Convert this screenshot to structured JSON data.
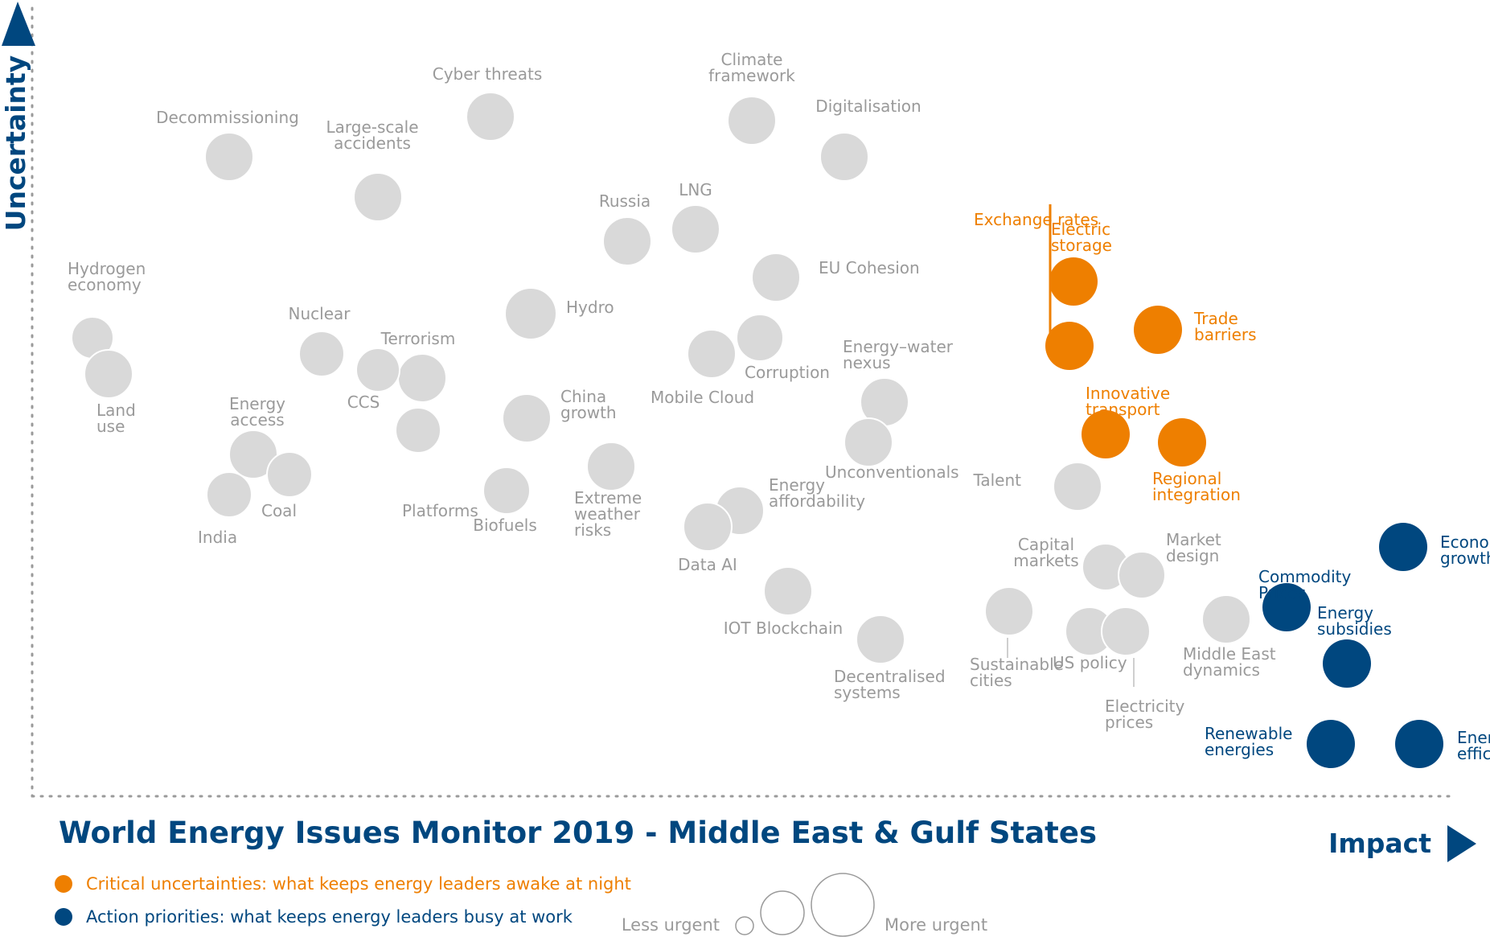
{
  "chart_data": {
    "type": "scatter",
    "title": "World Energy Issues Monitor 2019 - Middle East & Gulf States",
    "xlabel": "Impact",
    "ylabel": "Uncertainty",
    "grid": false,
    "colors": {
      "grey": "#d9d9d9",
      "grey_text": "#9a9a9a",
      "orange": "#ee7f00",
      "blue": "#00477f"
    },
    "legend": [
      {
        "color": "orange",
        "text": "Critical uncertainties: what keeps energy leaders awake at night"
      },
      {
        "color": "blue",
        "text": "Action priorities: what keeps energy leaders busy at work"
      }
    ],
    "size_legend": {
      "less": "Less urgent",
      "more": "More urgent"
    },
    "points": [
      {
        "label": "Cyber threats",
        "impact": 5.7,
        "uncertainty": 8.55,
        "size": 3.0,
        "group": "grey"
      },
      {
        "label": "Decommissioning",
        "impact": 2.45,
        "uncertainty": 8.05,
        "size": 3.0,
        "group": "grey"
      },
      {
        "label": "Large-scale\naccidents",
        "impact": 4.3,
        "uncertainty": 7.55,
        "size": 3.0,
        "group": "grey"
      },
      {
        "label": "Climate\nframework",
        "impact": 8.95,
        "uncertainty": 8.5,
        "size": 3.0,
        "group": "grey"
      },
      {
        "label": "Digitalisation",
        "impact": 10.1,
        "uncertainty": 8.05,
        "size": 3.0,
        "group": "grey"
      },
      {
        "label": "Russia",
        "impact": 7.4,
        "uncertainty": 7.0,
        "size": 3.0,
        "group": "grey"
      },
      {
        "label": "LNG",
        "impact": 8.25,
        "uncertainty": 7.15,
        "size": 3.0,
        "group": "grey"
      },
      {
        "label": "Hydrogen\neconomy",
        "impact": 0.75,
        "uncertainty": 5.8,
        "size": 2.6,
        "group": "grey"
      },
      {
        "label": "Land\nuse",
        "impact": 0.95,
        "uncertainty": 5.35,
        "size": 3.0,
        "group": "grey"
      },
      {
        "label": "Nuclear",
        "impact": 3.6,
        "uncertainty": 5.6,
        "size": 2.8,
        "group": "grey"
      },
      {
        "label": "Terrorism",
        "impact": 4.85,
        "uncertainty": 5.3,
        "size": 3.0,
        "group": "grey"
      },
      {
        "label": "CCS",
        "impact": 4.3,
        "uncertainty": 5.4,
        "size": 2.7,
        "group": "grey"
      },
      {
        "label": "Platforms",
        "impact": 4.8,
        "uncertainty": 4.65,
        "size": 2.8,
        "group": "grey"
      },
      {
        "label": "Hydro",
        "impact": 6.2,
        "uncertainty": 6.1,
        "size": 3.2,
        "group": "grey"
      },
      {
        "label": "EU Cohesion",
        "impact": 9.25,
        "uncertainty": 6.55,
        "size": 3.0,
        "group": "grey"
      },
      {
        "label": "Mobile Cloud",
        "impact": 8.45,
        "uncertainty": 5.6,
        "size": 3.0,
        "group": "grey"
      },
      {
        "label": "Corruption",
        "impact": 9.05,
        "uncertainty": 5.8,
        "size": 2.9,
        "group": "grey"
      },
      {
        "label": "Energy–water\nnexus",
        "impact": 10.6,
        "uncertainty": 5.0,
        "size": 3.0,
        "group": "grey"
      },
      {
        "label": "Unconventionals",
        "impact": 10.4,
        "uncertainty": 4.5,
        "size": 3.0,
        "group": "grey"
      },
      {
        "label": "Energy\naccess",
        "impact": 2.75,
        "uncertainty": 4.35,
        "size": 3.0,
        "group": "grey"
      },
      {
        "label": "Coal",
        "impact": 3.2,
        "uncertainty": 4.1,
        "size": 2.8,
        "group": "grey"
      },
      {
        "label": "India",
        "impact": 2.45,
        "uncertainty": 3.85,
        "size": 2.8,
        "group": "grey"
      },
      {
        "label": "China\ngrowth",
        "impact": 6.15,
        "uncertainty": 4.8,
        "size": 3.0,
        "group": "grey"
      },
      {
        "label": "Biofuels",
        "impact": 5.9,
        "uncertainty": 3.9,
        "size": 2.9,
        "group": "grey"
      },
      {
        "label": "Extreme\nweather\nrisks",
        "impact": 7.2,
        "uncertainty": 4.2,
        "size": 3.0,
        "group": "grey"
      },
      {
        "label": "Energy\naffordability",
        "impact": 8.8,
        "uncertainty": 3.65,
        "size": 3.0,
        "group": "grey"
      },
      {
        "label": "Data AI",
        "impact": 8.4,
        "uncertainty": 3.45,
        "size": 3.0,
        "group": "grey"
      },
      {
        "label": "IOT Blockchain",
        "impact": 9.4,
        "uncertainty": 2.65,
        "size": 3.0,
        "group": "grey"
      },
      {
        "label": "Decentralised\nsystems",
        "impact": 10.55,
        "uncertainty": 2.05,
        "size": 3.0,
        "group": "grey"
      },
      {
        "label": "Talent",
        "impact": 13.0,
        "uncertainty": 3.95,
        "size": 3.0,
        "group": "grey"
      },
      {
        "label": "Capital\nmarkets",
        "impact": 13.35,
        "uncertainty": 2.95,
        "size": 2.9,
        "group": "grey"
      },
      {
        "label": "Market\ndesign",
        "impact": 13.8,
        "uncertainty": 2.85,
        "size": 2.9,
        "group": "grey"
      },
      {
        "label": "Sustainable\ncities",
        "impact": 12.15,
        "uncertainty": 2.4,
        "size": 3.0,
        "group": "grey"
      },
      {
        "label": "US policy",
        "impact": 13.15,
        "uncertainty": 2.15,
        "size": 3.0,
        "group": "grey"
      },
      {
        "label": "Electricity\nprices",
        "impact": 13.6,
        "uncertainty": 2.15,
        "size": 3.0,
        "group": "grey"
      },
      {
        "label": "Middle East\ndynamics",
        "impact": 14.85,
        "uncertainty": 2.3,
        "size": 3.0,
        "group": "grey"
      },
      {
        "label": "Exchange rates",
        "impact": 12.9,
        "uncertainty": 5.7,
        "size": 3.0,
        "group": "orange"
      },
      {
        "label": "Electric\nstorage",
        "impact": 12.95,
        "uncertainty": 6.5,
        "size": 3.0,
        "group": "orange"
      },
      {
        "label": "Trade\nbarriers",
        "impact": 14.0,
        "uncertainty": 5.9,
        "size": 3.0,
        "group": "orange"
      },
      {
        "label": "Innovative\ntransport",
        "impact": 13.35,
        "uncertainty": 4.6,
        "size": 3.0,
        "group": "orange"
      },
      {
        "label": "Regional\nintegration",
        "impact": 14.3,
        "uncertainty": 4.5,
        "size": 3.0,
        "group": "orange"
      },
      {
        "label": "Commodity\nPrices",
        "impact": 15.6,
        "uncertainty": 2.45,
        "size": 3.0,
        "group": "blue"
      },
      {
        "label": "Economic\ngrowth",
        "impact": 17.05,
        "uncertainty": 3.2,
        "size": 3.0,
        "group": "blue"
      },
      {
        "label": "Energy\nsubsidies",
        "impact": 16.35,
        "uncertainty": 1.75,
        "size": 3.0,
        "group": "blue"
      },
      {
        "label": "Renewable\nenergies",
        "impact": 16.15,
        "uncertainty": 0.75,
        "size": 3.0,
        "group": "blue"
      },
      {
        "label": "Energy\nefficiency",
        "impact": 17.25,
        "uncertainty": 0.75,
        "size": 3.0,
        "group": "blue"
      }
    ]
  }
}
